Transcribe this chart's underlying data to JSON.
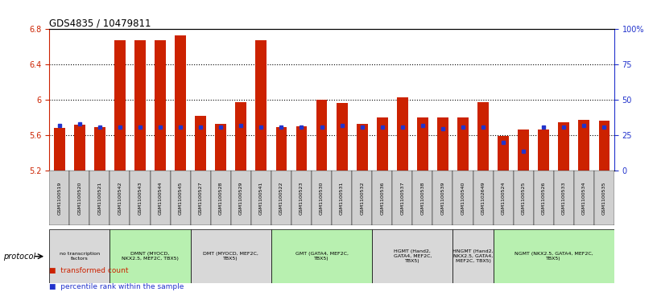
{
  "title": "GDS4835 / 10479811",
  "samples": [
    "GSM1100519",
    "GSM1100520",
    "GSM1100521",
    "GSM1100542",
    "GSM1100543",
    "GSM1100544",
    "GSM1100545",
    "GSM1100527",
    "GSM1100528",
    "GSM1100529",
    "GSM1100541",
    "GSM1100522",
    "GSM1100523",
    "GSM1100530",
    "GSM1100531",
    "GSM1100532",
    "GSM1100536",
    "GSM1100537",
    "GSM1100538",
    "GSM1100539",
    "GSM1100540",
    "GSM1102649",
    "GSM1100524",
    "GSM1100525",
    "GSM1100526",
    "GSM1100533",
    "GSM1100534",
    "GSM1100535"
  ],
  "transformed_count": [
    5.685,
    5.72,
    5.69,
    6.68,
    6.68,
    6.68,
    6.73,
    5.82,
    5.73,
    5.98,
    6.68,
    5.69,
    5.7,
    6.0,
    5.97,
    5.73,
    5.8,
    6.03,
    5.8,
    5.8,
    5.8,
    5.98,
    5.59,
    5.67,
    5.67,
    5.75,
    5.78,
    5.77
  ],
  "percentile_rank": [
    32,
    33,
    31,
    31,
    31,
    31,
    31,
    31,
    31,
    32,
    31,
    31,
    31,
    31,
    32,
    31,
    31,
    31,
    32,
    30,
    31,
    31,
    20,
    14,
    31,
    31,
    32,
    31
  ],
  "ylim_left": [
    5.2,
    6.8
  ],
  "ylim_right": [
    0,
    100
  ],
  "yticks_left": [
    5.2,
    5.6,
    6.0,
    6.4,
    6.8
  ],
  "ytick_labels_left": [
    "5.2",
    "5.6",
    "6",
    "6.4",
    "6.8"
  ],
  "yticks_right": [
    0,
    25,
    50,
    75,
    100
  ],
  "ytick_labels_right": [
    "0",
    "25",
    "50",
    "75",
    "100%"
  ],
  "bar_color": "#cc2200",
  "percentile_color": "#2233cc",
  "background_color": "#ffffff",
  "groups": [
    {
      "label": "no transcription\nfactors",
      "start": 0,
      "end": 3,
      "color": "#d8d8d8"
    },
    {
      "label": "DMNT (MYOCD,\nNKX2.5, MEF2C, TBX5)",
      "start": 3,
      "end": 7,
      "color": "#b8f0b0"
    },
    {
      "label": "DMT (MYOCD, MEF2C,\nTBX5)",
      "start": 7,
      "end": 11,
      "color": "#d8d8d8"
    },
    {
      "label": "GMT (GATA4, MEF2C,\nTBX5)",
      "start": 11,
      "end": 16,
      "color": "#b8f0b0"
    },
    {
      "label": "HGMT (Hand2,\nGATA4, MEF2C,\nTBX5)",
      "start": 16,
      "end": 20,
      "color": "#d8d8d8"
    },
    {
      "label": "HNGMT (Hand2,\nNKX2.5, GATA4,\nMEF2C, TBX5)",
      "start": 20,
      "end": 22,
      "color": "#d8d8d8"
    },
    {
      "label": "NGMT (NKX2.5, GATA4, MEF2C,\nTBX5)",
      "start": 22,
      "end": 28,
      "color": "#b8f0b0"
    }
  ],
  "ylabel_left_color": "#cc2200",
  "ylabel_right_color": "#2233cc",
  "ybase": 5.2,
  "grid_yticks": [
    5.6,
    6.0,
    6.4
  ],
  "xtick_bg_color": "#d0d0d0",
  "protocol_label": "protocol",
  "legend_items": [
    {
      "label": "transformed count",
      "color": "#cc2200"
    },
    {
      "label": "percentile rank within the sample",
      "color": "#2233cc"
    }
  ]
}
